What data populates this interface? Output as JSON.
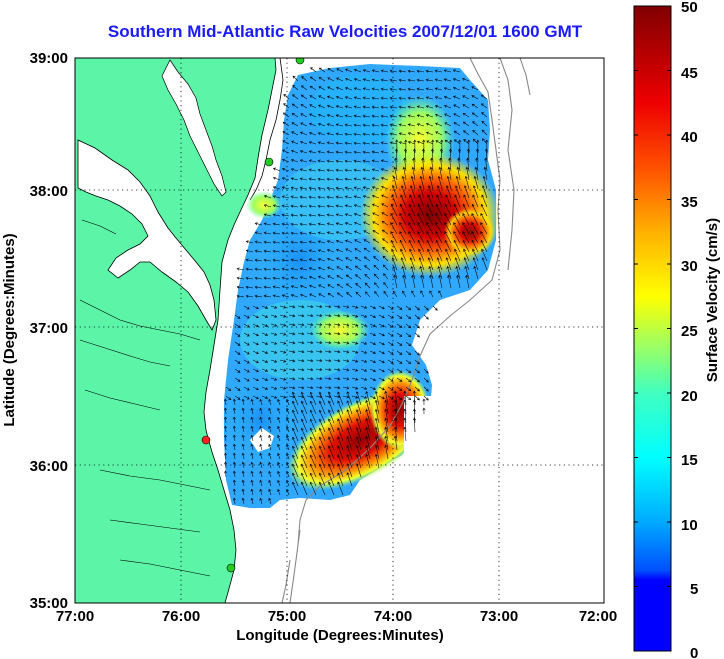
{
  "title": "Southern Mid-Atlantic Raw Velocities 2007/12/01 1600 GMT",
  "x_axis": {
    "label": "Longitude (Degrees:Minutes)",
    "ticks": [
      "77:00",
      "76:00",
      "75:00",
      "74:00",
      "73:00",
      "72:00"
    ]
  },
  "y_axis": {
    "label": "Latitude (Degrees:Minutes)",
    "ticks": [
      "39:00",
      "38:00",
      "37:00",
      "36:00",
      "35:00"
    ]
  },
  "colorbar": {
    "label": "Surface Velocity (cm/s)",
    "ticks": [
      "50",
      "45",
      "40",
      "35",
      "30",
      "25",
      "20",
      "15",
      "10",
      "5",
      "0"
    ],
    "range": [
      0,
      50
    ],
    "colormap": "jet"
  },
  "map": {
    "lon_range": [
      -77,
      -72
    ],
    "lat_range": [
      35,
      39
    ],
    "grid": "dotted",
    "land_color": "#5cf5a8",
    "station_colors": [
      "#22cc22",
      "#ff2020"
    ]
  }
}
